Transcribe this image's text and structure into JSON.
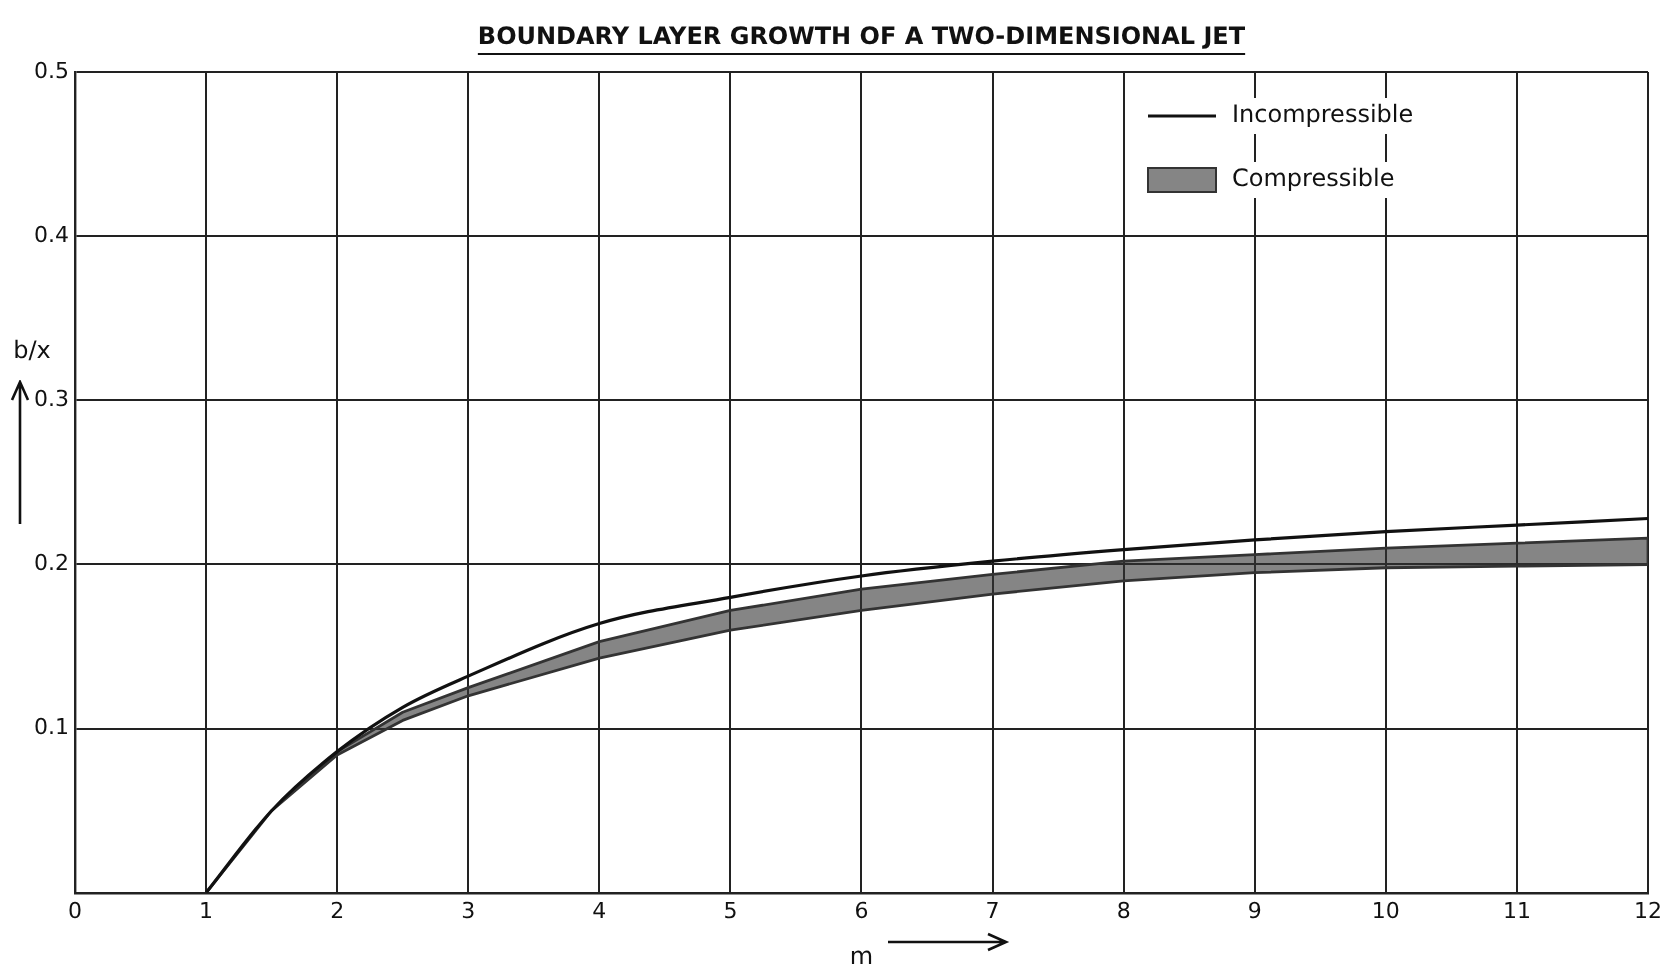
{
  "chart_data": {
    "type": "line",
    "title": "BOUNDARY LAYER GROWTH OF A TWO-DIMENSIONAL JET",
    "xlabel": "m",
    "ylabel": "b/x",
    "x": [
      1,
      1.5,
      2,
      2.5,
      3,
      4,
      5,
      6,
      7,
      8,
      9,
      10,
      11,
      12
    ],
    "series": [
      {
        "name": "Incompressible",
        "type": "line",
        "color": "#111111",
        "values": [
          0,
          0.05,
          0.086,
          0.113,
          0.132,
          0.164,
          0.18,
          0.193,
          0.202,
          0.209,
          0.215,
          0.22,
          0.224,
          0.228
        ]
      },
      {
        "name": "Compressible",
        "type": "area",
        "color": "#333333",
        "values": [
          null,
          null,
          null,
          null,
          null,
          null,
          null,
          null,
          null,
          null,
          null,
          null,
          null,
          null
        ],
        "upper": [
          0,
          0.05,
          0.086,
          0.11,
          0.125,
          0.153,
          0.172,
          0.185,
          0.194,
          0.202,
          0.206,
          0.21,
          0.213,
          0.216
        ],
        "lower": [
          0,
          0.05,
          0.084,
          0.105,
          0.12,
          0.143,
          0.16,
          0.172,
          0.182,
          0.19,
          0.195,
          0.198,
          0.199,
          0.2
        ]
      }
    ],
    "xlim": [
      0,
      12
    ],
    "xticks": [
      0,
      1,
      2,
      3,
      4,
      5,
      6,
      7,
      8,
      9,
      10,
      11,
      12
    ],
    "ylim": [
      0,
      0.5
    ],
    "yticks": [
      {
        "value": 0,
        "label": null
      },
      0.1,
      0.2,
      0.3,
      0.4,
      0.5
    ],
    "grid": true,
    "legend": "top right",
    "marker": "none",
    "line_style": "solid"
  }
}
